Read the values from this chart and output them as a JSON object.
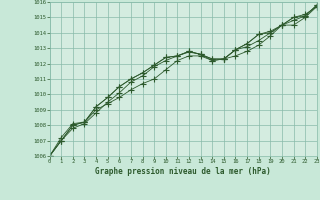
{
  "xlabel": "Graphe pression niveau de la mer (hPa)",
  "background_color": "#c8e8d8",
  "plot_background_color": "#d4ece0",
  "grid_color": "#88bbaa",
  "line_color": "#2d5a2d",
  "marker_color": "#2d5a2d",
  "text_color": "#2d5a2d",
  "ylim": [
    1006,
    1016
  ],
  "xlim": [
    0,
    23
  ],
  "yticks": [
    1006,
    1007,
    1008,
    1009,
    1010,
    1011,
    1012,
    1013,
    1014,
    1015,
    1016
  ],
  "xticks": [
    0,
    1,
    2,
    3,
    4,
    5,
    6,
    7,
    8,
    9,
    10,
    11,
    12,
    13,
    14,
    15,
    16,
    17,
    18,
    19,
    20,
    21,
    22,
    23
  ],
  "series": [
    [
      1006.0,
      1007.0,
      1007.8,
      1008.1,
      1008.8,
      1009.5,
      1010.1,
      1010.8,
      1011.2,
      1011.8,
      1012.2,
      1012.5,
      1012.75,
      1012.6,
      1012.3,
      1012.3,
      1012.9,
      1013.1,
      1013.5,
      1014.0,
      1014.5,
      1015.0,
      1015.2,
      1015.7
    ],
    [
      1006.0,
      1007.0,
      1008.0,
      1008.2,
      1009.2,
      1009.8,
      1010.5,
      1011.0,
      1011.4,
      1011.9,
      1012.4,
      1012.5,
      1012.8,
      1012.6,
      1012.3,
      1012.3,
      1012.9,
      1013.3,
      1013.9,
      1014.0,
      1014.5,
      1014.8,
      1015.1,
      1015.8
    ],
    [
      1006.0,
      1007.0,
      1008.0,
      1008.2,
      1009.2,
      1009.8,
      1010.5,
      1011.0,
      1011.4,
      1011.9,
      1012.4,
      1012.5,
      1012.8,
      1012.6,
      1012.2,
      1012.3,
      1012.9,
      1013.3,
      1013.9,
      1014.1,
      1014.5,
      1015.0,
      1015.1,
      1015.8
    ],
    [
      1006.0,
      1007.2,
      1008.1,
      1008.2,
      1009.0,
      1009.4,
      1009.8,
      1010.3,
      1010.7,
      1011.0,
      1011.6,
      1012.2,
      1012.5,
      1012.5,
      1012.2,
      1012.3,
      1012.5,
      1012.8,
      1013.2,
      1013.8,
      1014.5,
      1014.5,
      1015.0,
      1015.7
    ]
  ]
}
